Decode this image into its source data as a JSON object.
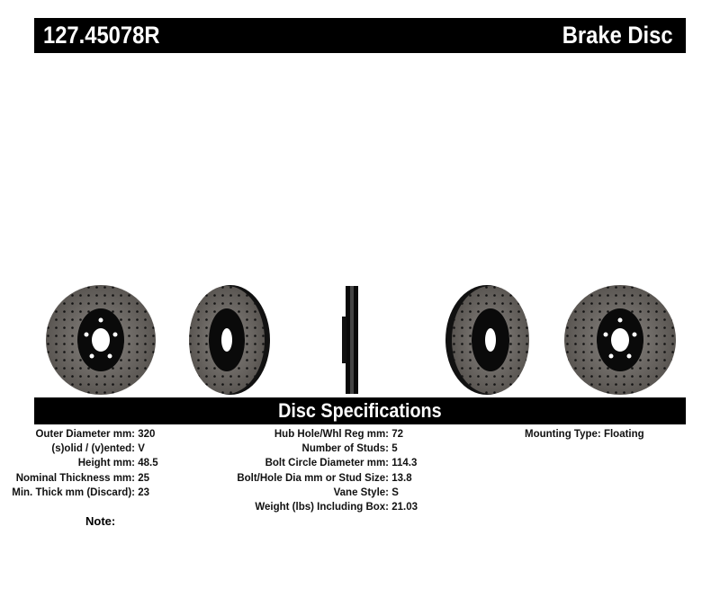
{
  "header": {
    "part_number": "127.45078R",
    "title": "Brake Disc"
  },
  "spec_title": "Disc Specifications",
  "specs_col1": [
    {
      "label": "Outer Diameter mm:",
      "value": "320"
    },
    {
      "label": "(s)olid / (v)ented:",
      "value": "V"
    },
    {
      "label": "Height mm:",
      "value": "48.5"
    },
    {
      "label": "Nominal Thickness mm:",
      "value": "25"
    },
    {
      "label": "Min. Thick mm (Discard):",
      "value": "23"
    }
  ],
  "specs_col2": [
    {
      "label": "Hub Hole/Whl Reg mm:",
      "value": "72"
    },
    {
      "label": "Number of Studs:",
      "value": "5"
    },
    {
      "label": "Bolt Circle Diameter mm:",
      "value": "114.3"
    },
    {
      "label": "Bolt/Hole Dia mm or Stud Size:",
      "value": "13.8"
    },
    {
      "label": "Vane Style:",
      "value": "S"
    },
    {
      "label": "Weight (lbs) Including Box:",
      "value": "21.03"
    }
  ],
  "specs_col3": [
    {
      "label": "Mounting Type:",
      "value": "Floating"
    }
  ],
  "note_label": "Note:",
  "colors": {
    "bar": "#000000",
    "rotor": "#6e6a66",
    "hat": "#0a0a0a"
  }
}
